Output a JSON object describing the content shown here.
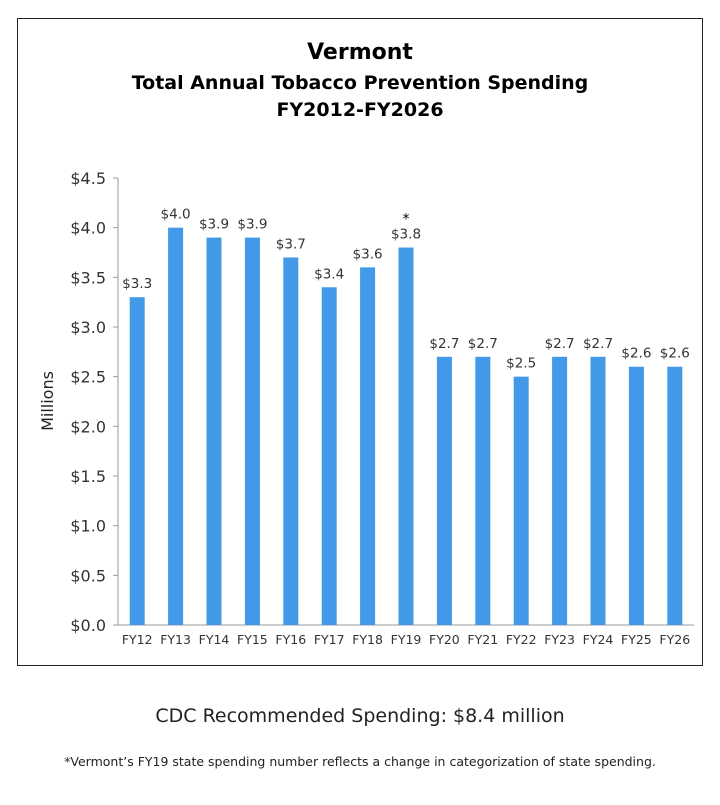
{
  "chart_data": {
    "type": "bar",
    "title": "Vermont",
    "subtitle": [
      "Total Annual Tobacco Prevention Spending",
      "FY2012-FY2026"
    ],
    "categories": [
      "FY12",
      "FY13",
      "FY14",
      "FY15",
      "FY16",
      "FY17",
      "FY18",
      "FY19",
      "FY20",
      "FY21",
      "FY22",
      "FY23",
      "FY24",
      "FY25",
      "FY26"
    ],
    "values": [
      3.3,
      4.0,
      3.9,
      3.9,
      3.7,
      3.4,
      3.6,
      3.8,
      2.7,
      2.7,
      2.5,
      2.7,
      2.7,
      2.6,
      2.6
    ],
    "data_labels": [
      "$3.3",
      "$4.0",
      "$3.9",
      "$3.9",
      "$3.7",
      "$3.4",
      "$3.6",
      "$3.8",
      "$2.7",
      "$2.7",
      "$2.5",
      "$2.7",
      "$2.7",
      "$2.6",
      "$2.6"
    ],
    "annotations": [
      {
        "category": "FY19",
        "text": "*"
      }
    ],
    "ylabel": "Millions",
    "xlabel": "",
    "ylim": [
      0,
      4.5
    ],
    "yticks": [
      0,
      0.5,
      1.0,
      1.5,
      2.0,
      2.5,
      3.0,
      3.5,
      4.0,
      4.5
    ],
    "ytick_labels": [
      "$0.0",
      "$0.5",
      "$1.0",
      "$1.5",
      "$2.0",
      "$2.5",
      "$3.0",
      "$3.5",
      "$4.0",
      "$4.5"
    ],
    "grid": false,
    "legend": "none",
    "bar_color": "#4199e8"
  },
  "footer": {
    "recommended": "CDC Recommended Spending: $8.4 million",
    "note": "*Vermont’s FY19 state spending number reflects a change in categorization of state spending."
  }
}
